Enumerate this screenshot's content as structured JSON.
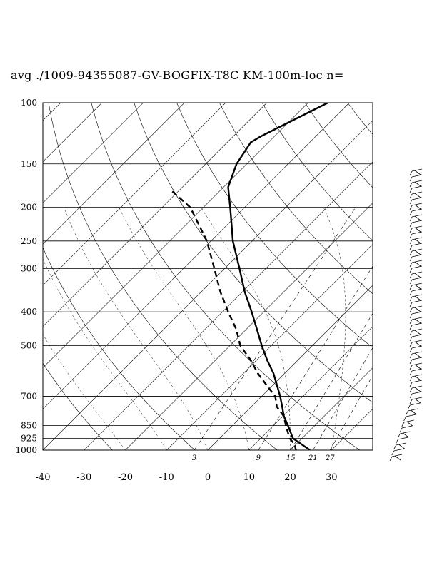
{
  "title": "avg ./1009-94355087-GV-BOGFIX-T8C KM-100m-loc n=",
  "chart_data": {
    "type": "skew-t",
    "pressure_levels": [
      100,
      150,
      200,
      250,
      300,
      400,
      500,
      700,
      850,
      925,
      1000
    ],
    "pressure_range": [
      100,
      1000
    ],
    "temperature_ticks": [
      -40,
      -30,
      -20,
      -10,
      0,
      10,
      20,
      30
    ],
    "temperature_range_at_1000hPa": [
      -40,
      40
    ],
    "mixing_ratio_labels": [
      "3",
      "9",
      "15",
      "21",
      "27"
    ],
    "grid": true,
    "series": [
      {
        "style": "solid",
        "points": [
          {
            "p": 100,
            "t": -55.2
          },
          {
            "p": 125,
            "t": -63.3
          },
          {
            "p": 130,
            "t": -64.3
          },
          {
            "p": 150,
            "t": -62.5
          },
          {
            "p": 175,
            "t": -58.9
          },
          {
            "p": 200,
            "t": -53.5
          },
          {
            "p": 250,
            "t": -44.7
          },
          {
            "p": 300,
            "t": -36.4
          },
          {
            "p": 350,
            "t": -29.5
          },
          {
            "p": 400,
            "t": -22.9
          },
          {
            "p": 450,
            "t": -17.3
          },
          {
            "p": 500,
            "t": -12.3
          },
          {
            "p": 550,
            "t": -7.5
          },
          {
            "p": 600,
            "t": -2.8
          },
          {
            "p": 650,
            "t": 1.0
          },
          {
            "p": 700,
            "t": 4.5
          },
          {
            "p": 750,
            "t": 7.5
          },
          {
            "p": 800,
            "t": 10.3
          },
          {
            "p": 850,
            "t": 13.5
          },
          {
            "p": 925,
            "t": 17.8
          },
          {
            "p": 1000,
            "t": 24.8
          }
        ]
      },
      {
        "style": "dashed",
        "points": [
          {
            "p": 180,
            "t": -71.4
          },
          {
            "p": 200,
            "t": -63.2
          },
          {
            "p": 250,
            "t": -51.0
          },
          {
            "p": 300,
            "t": -42.5
          },
          {
            "p": 350,
            "t": -35.4
          },
          {
            "p": 400,
            "t": -28.6
          },
          {
            "p": 450,
            "t": -22.3
          },
          {
            "p": 500,
            "t": -17.5
          },
          {
            "p": 550,
            "t": -11.5
          },
          {
            "p": 600,
            "t": -6.6
          },
          {
            "p": 650,
            "t": -1.5
          },
          {
            "p": 700,
            "t": 3.3
          },
          {
            "p": 750,
            "t": 6.2
          },
          {
            "p": 800,
            "t": 10.3
          },
          {
            "p": 850,
            "t": 13.0
          },
          {
            "p": 925,
            "t": 17.0
          },
          {
            "p": 960,
            "t": 19.5
          },
          {
            "p": 1000,
            "t": 21.4
          }
        ]
      }
    ],
    "wind_barbs_present": true
  },
  "colors": {
    "lines": "#000000",
    "background": "#ffffff"
  }
}
